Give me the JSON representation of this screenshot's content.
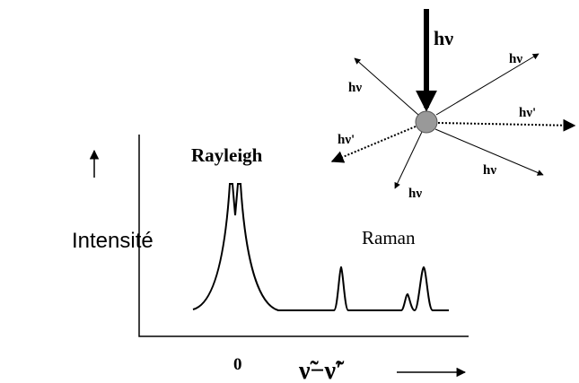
{
  "photon_labels": {
    "incident": "hν",
    "upper_left": "hν",
    "upper_right": "hν",
    "right": "hν'",
    "left": "hν'",
    "lower_left": "hν",
    "lower_right": "hν"
  },
  "spectrum": {
    "y_label": "Intensité",
    "rayleigh": "Rayleigh",
    "raman": "Raman",
    "origin": "0",
    "x_label": "ν̃−ν̃′"
  }
}
